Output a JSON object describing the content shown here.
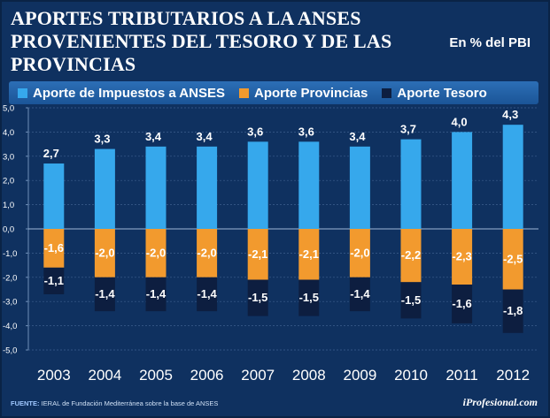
{
  "header": {
    "title": "APORTES TRIBUTARIOS A LA ANSES PROVENIENTES DEL TESORO Y DE LAS PROVINCIAS",
    "subtitle": "En % del PBI"
  },
  "legend": {
    "items": [
      {
        "label": "Aporte de Impuestos  a ANSES",
        "color": "#36a8ec"
      },
      {
        "label": "Aporte Provincias",
        "color": "#f29a2e"
      },
      {
        "label": "Aporte Tesoro",
        "color": "#0d1e40"
      }
    ]
  },
  "footer": {
    "source_label": "FUENTE:",
    "source_text": "IERAL de Fundación Mediterránea sobre la base de ANSES",
    "brand": "iProfesional.com"
  },
  "chart_data": {
    "type": "bar",
    "stacked": true,
    "categories": [
      "2003",
      "2004",
      "2005",
      "2006",
      "2007",
      "2008",
      "2009",
      "2010",
      "2011",
      "2012"
    ],
    "series": [
      {
        "name": "Aporte de Impuestos  a ANSES",
        "color": "#36a8ec",
        "values": [
          2.7,
          3.3,
          3.4,
          3.4,
          3.6,
          3.6,
          3.4,
          3.7,
          4.0,
          4.3
        ],
        "labels": [
          "2,7",
          "3,3",
          "3,4",
          "3,4",
          "3,6",
          "3,6",
          "3,4",
          "3,7",
          "4,0",
          "4,3"
        ]
      },
      {
        "name": "Aporte Provincias",
        "color": "#f29a2e",
        "values": [
          -1.6,
          -2.0,
          -2.0,
          -2.0,
          -2.1,
          -2.1,
          -2.0,
          -2.2,
          -2.3,
          -2.5
        ],
        "labels": [
          "-1,6",
          "-2,0",
          "-2,0",
          "-2,0",
          "-2,1",
          "-2,1",
          "-2,0",
          "-2,2",
          "-2,3",
          "-2,5"
        ]
      },
      {
        "name": "Aporte Tesoro",
        "color": "#0d1e40",
        "values": [
          -1.1,
          -1.4,
          -1.4,
          -1.4,
          -1.5,
          -1.5,
          -1.4,
          -1.5,
          -1.6,
          -1.8
        ],
        "labels": [
          "-1,1",
          "-1,4",
          "-1,4",
          "-1,4",
          "-1,5",
          "-1,5",
          "-1,4",
          "-1,5",
          "-1,6",
          "-1,8"
        ]
      }
    ],
    "ylim": [
      -5.0,
      5.0
    ],
    "yticks": [
      5.0,
      4.0,
      3.0,
      2.0,
      1.0,
      0.0,
      -1.0,
      -2.0,
      -3.0,
      -4.0,
      -5.0
    ],
    "ytick_labels": [
      "5,0",
      "4,0",
      "3,0",
      "2,0",
      "1,0",
      "0,0",
      "-1,0",
      "-2,0",
      "-3,0",
      "-4,0",
      "-5,0"
    ],
    "grid": true
  }
}
